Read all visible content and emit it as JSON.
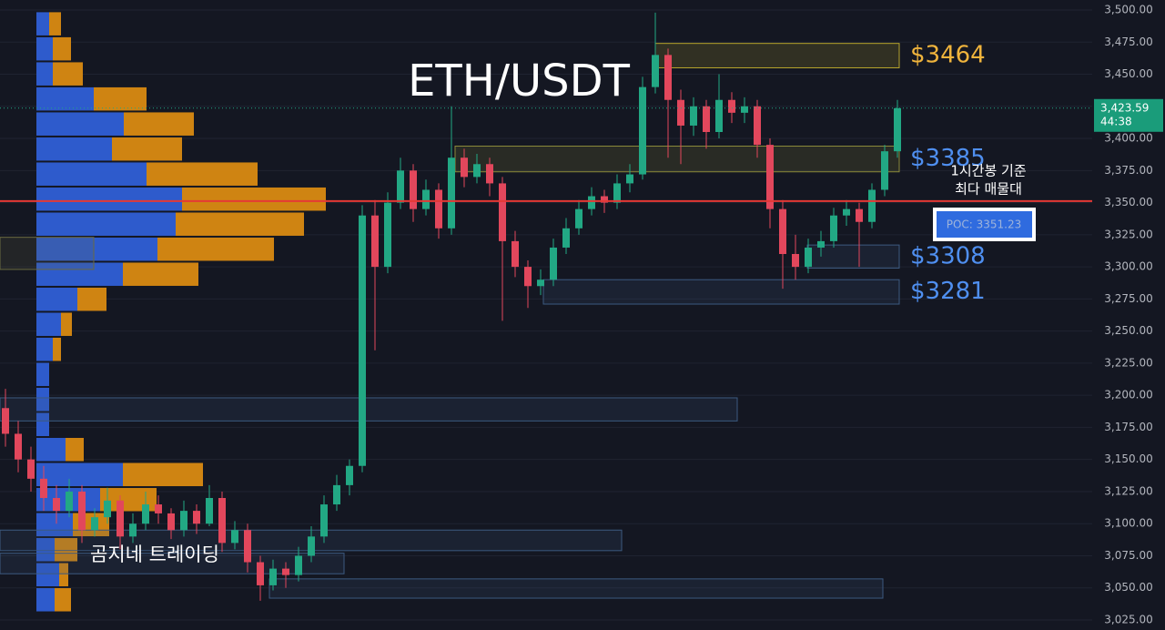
{
  "chart_data": {
    "type": "candlestick",
    "title": "ETH/USDT",
    "watermark": "곰지네 트레이딩",
    "ylim": [
      3017.2,
      3507.8
    ],
    "yticks": [
      {
        "value": 3025,
        "label": "3,025.00"
      },
      {
        "value": 3050,
        "label": "3,050.00"
      },
      {
        "value": 3075,
        "label": "3,075.00"
      },
      {
        "value": 3100,
        "label": "3,100.00"
      },
      {
        "value": 3125,
        "label": "3,125.00"
      },
      {
        "value": 3150,
        "label": "3,150.00"
      },
      {
        "value": 3175,
        "label": "3,175.00"
      },
      {
        "value": 3200,
        "label": "3,200.00"
      },
      {
        "value": 3225,
        "label": "3,225.00"
      },
      {
        "value": 3250,
        "label": "3,250.00"
      },
      {
        "value": 3275,
        "label": "3,275.00"
      },
      {
        "value": 3300,
        "label": "3,300.00"
      },
      {
        "value": 3325,
        "label": "3,325.00"
      },
      {
        "value": 3350,
        "label": "3,350.00"
      },
      {
        "value": 3375,
        "label": "3,375.00"
      },
      {
        "value": 3400,
        "label": "3,400.00"
      },
      {
        "value": 3425,
        "label": "3,425.00"
      },
      {
        "value": 3450,
        "label": "3,450.00"
      },
      {
        "value": 3475,
        "label": "3,475.00"
      },
      {
        "value": 3500,
        "label": "3,500.00"
      }
    ],
    "grid": true,
    "up_color": "#22a884",
    "down_color": "#e2475c",
    "ohlc": [
      [
        3190,
        3205,
        3160,
        3170
      ],
      [
        3170,
        3180,
        3140,
        3150
      ],
      [
        3150,
        3160,
        3125,
        3135
      ],
      [
        3135,
        3145,
        3110,
        3120
      ],
      [
        3120,
        3130,
        3100,
        3110
      ],
      [
        3110,
        3135,
        3105,
        3125
      ],
      [
        3125,
        3130,
        3085,
        3095
      ],
      [
        3095,
        3112,
        3090,
        3105
      ],
      [
        3105,
        3128,
        3100,
        3118
      ],
      [
        3118,
        3122,
        3080,
        3090
      ],
      [
        3090,
        3108,
        3085,
        3100
      ],
      [
        3100,
        3125,
        3095,
        3115
      ],
      [
        3115,
        3122,
        3100,
        3108
      ],
      [
        3108,
        3112,
        3088,
        3095
      ],
      [
        3095,
        3118,
        3090,
        3110
      ],
      [
        3110,
        3115,
        3092,
        3100
      ],
      [
        3100,
        3130,
        3098,
        3120
      ],
      [
        3120,
        3125,
        3078,
        3085
      ],
      [
        3085,
        3102,
        3080,
        3095
      ],
      [
        3095,
        3100,
        3062,
        3070
      ],
      [
        3070,
        3075,
        3040,
        3052
      ],
      [
        3052,
        3072,
        3048,
        3065
      ],
      [
        3065,
        3070,
        3050,
        3060
      ],
      [
        3060,
        3082,
        3055,
        3075
      ],
      [
        3075,
        3098,
        3070,
        3090
      ],
      [
        3090,
        3122,
        3085,
        3115
      ],
      [
        3115,
        3138,
        3110,
        3130
      ],
      [
        3130,
        3150,
        3122,
        3145
      ],
      [
        3145,
        3348,
        3140,
        3340
      ],
      [
        3340,
        3352,
        3235,
        3300
      ],
      [
        3300,
        3358,
        3295,
        3350
      ],
      [
        3350,
        3385,
        3345,
        3375
      ],
      [
        3375,
        3380,
        3335,
        3345
      ],
      [
        3345,
        3368,
        3340,
        3360
      ],
      [
        3360,
        3365,
        3322,
        3330
      ],
      [
        3330,
        3425,
        3325,
        3385
      ],
      [
        3385,
        3392,
        3362,
        3370
      ],
      [
        3370,
        3388,
        3365,
        3380
      ],
      [
        3380,
        3385,
        3355,
        3365
      ],
      [
        3365,
        3370,
        3258,
        3320
      ],
      [
        3320,
        3328,
        3292,
        3300
      ],
      [
        3300,
        3305,
        3268,
        3285
      ],
      [
        3285,
        3298,
        3278,
        3290
      ],
      [
        3290,
        3322,
        3285,
        3315
      ],
      [
        3315,
        3338,
        3310,
        3330
      ],
      [
        3330,
        3352,
        3325,
        3345
      ],
      [
        3345,
        3362,
        3340,
        3355
      ],
      [
        3355,
        3360,
        3342,
        3350
      ],
      [
        3350,
        3372,
        3345,
        3365
      ],
      [
        3365,
        3380,
        3358,
        3372
      ],
      [
        3372,
        3448,
        3368,
        3440
      ],
      [
        3440,
        3498,
        3435,
        3465
      ],
      [
        3465,
        3470,
        3385,
        3430
      ],
      [
        3430,
        3438,
        3380,
        3410
      ],
      [
        3410,
        3432,
        3402,
        3425
      ],
      [
        3425,
        3430,
        3392,
        3405
      ],
      [
        3405,
        3450,
        3400,
        3430
      ],
      [
        3430,
        3436,
        3412,
        3420
      ],
      [
        3420,
        3432,
        3412,
        3425
      ],
      [
        3425,
        3430,
        3385,
        3395
      ],
      [
        3395,
        3400,
        3330,
        3345
      ],
      [
        3345,
        3352,
        3283,
        3310
      ],
      [
        3310,
        3325,
        3290,
        3300
      ],
      [
        3300,
        3322,
        3295,
        3315
      ],
      [
        3315,
        3328,
        3308,
        3320
      ],
      [
        3320,
        3346,
        3315,
        3340
      ],
      [
        3340,
        3352,
        3332,
        3345
      ],
      [
        3345,
        3350,
        3300,
        3335
      ],
      [
        3335,
        3365,
        3330,
        3360
      ],
      [
        3360,
        3395,
        3355,
        3390
      ],
      [
        3390,
        3430,
        3385,
        3423.59
      ]
    ],
    "volume_profile": {
      "bins": [
        3031,
        3050.5,
        3070,
        3089.5,
        3109,
        3128.5,
        3148,
        3167.5,
        3187,
        3206.5,
        3226,
        3245.5,
        3265,
        3284.5,
        3304,
        3323.5,
        3343,
        3362.5,
        3382,
        3401.5,
        3421,
        3440.5,
        3460,
        3479.5,
        3499
      ],
      "buy": [
        20,
        25,
        20,
        40,
        70,
        95,
        32,
        14,
        14,
        14,
        18,
        27,
        45,
        95,
        133,
        153,
        160,
        121,
        83,
        96,
        63,
        18,
        18,
        14
      ],
      "sell": [
        18,
        10,
        25,
        40,
        62,
        88,
        20,
        0,
        0,
        0,
        9,
        12,
        32,
        83,
        128,
        141,
        158,
        122,
        77,
        77,
        58,
        33,
        20,
        13
      ],
      "buy_color": "#2f5fd6",
      "sell_color": "#d98a12"
    },
    "zones": [
      {
        "low": 3455,
        "high": 3474,
        "color": "#b8a52c",
        "label": "$3464"
      },
      {
        "low": 3374,
        "high": 3394,
        "color": "#8c8a3a",
        "label": "$3385"
      },
      {
        "low": 3299,
        "high": 3317,
        "color": "#3c5a80",
        "label": "$3308"
      },
      {
        "low": 3271,
        "high": 3290,
        "color": "#3c5a80",
        "label": "$3281"
      },
      {
        "low": 3180,
        "high": 3198,
        "color": "#3c5a80"
      },
      {
        "low": 3079,
        "high": 3095,
        "color": "#3c5a80"
      },
      {
        "low": 3061,
        "high": 3077,
        "color": "#3c5a80"
      },
      {
        "low": 3042,
        "high": 3057,
        "color": "#3c5a80"
      },
      {
        "low": 3298,
        "high": 3323,
        "color": "#6a6a40"
      }
    ],
    "poc": {
      "value": 3351.23,
      "label": "POC: 3351.23",
      "note": [
        "1시간봉 기준",
        "최다 매물대"
      ]
    },
    "last_price": {
      "value": 3423.59,
      "label": "3,423.59",
      "timer": "44:38"
    }
  }
}
